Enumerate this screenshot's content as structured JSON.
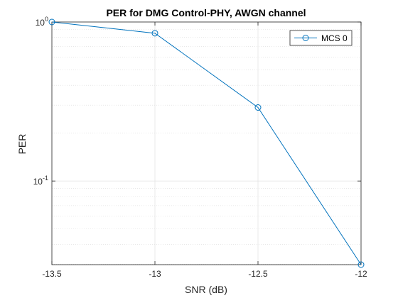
{
  "chart_data": {
    "type": "line",
    "title": "PER for DMG Control-PHY, AWGN channel",
    "xlabel": "SNR (dB)",
    "ylabel": "PER",
    "xlim": [
      -13.5,
      -12
    ],
    "ylim": [
      0.0298,
      1
    ],
    "yscale": "log",
    "grid": true,
    "minor_grid": true,
    "legend_position": "top-right",
    "xticks": [
      {
        "value": -13.5,
        "label": "-13.5"
      },
      {
        "value": -13,
        "label": "-13"
      },
      {
        "value": -12.5,
        "label": "-12.5"
      },
      {
        "value": -12,
        "label": "-12"
      }
    ],
    "yticks": [
      {
        "value": 1,
        "base": "10",
        "exp": "0"
      },
      {
        "value": 0.1,
        "base": "10",
        "exp": "-1"
      }
    ],
    "series": [
      {
        "name": "MCS 0",
        "color": "#0072bd",
        "marker": "circle",
        "x": [
          -13.5,
          -13,
          -12.5,
          -12
        ],
        "y": [
          1.0,
          0.85,
          0.29,
          0.0298
        ]
      }
    ]
  }
}
